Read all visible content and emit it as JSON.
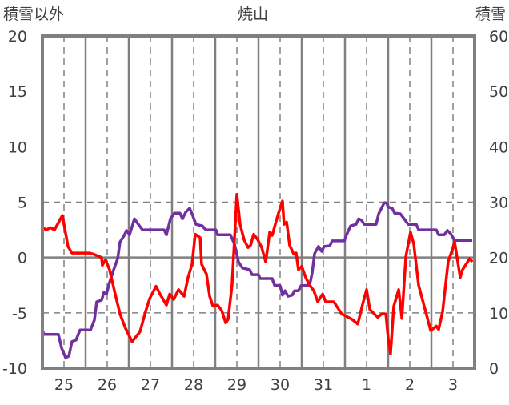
{
  "chart_data": {
    "type": "line",
    "title": "焼山",
    "ylabel_left": "積雪以外",
    "ylabel_right": "積雪",
    "ylim_left": [
      -10,
      20
    ],
    "yticks_left": [
      "20",
      "15",
      "10",
      "5",
      "0",
      "-5",
      "-10"
    ],
    "ylim_right": [
      0,
      60
    ],
    "yticks_right": [
      "60",
      "50",
      "40",
      "30",
      "20",
      "10",
      "0"
    ],
    "x_unit": "hours from start of day 25",
    "xlim": [
      0,
      240
    ],
    "x_tick_labels": [
      "25",
      "26",
      "27",
      "28",
      "29",
      "30",
      "31",
      "1",
      "2",
      "3"
    ],
    "grid": "vertical solid at midnight, dashed at noon; horizontal solid at 0, dashed at ±5",
    "series": [
      {
        "name": "積雪以外",
        "axis": "left",
        "color": "#ff0000",
        "points": [
          [
            0,
            2.7
          ],
          [
            2.2,
            2.5
          ],
          [
            4.4,
            2.7
          ],
          [
            6.7,
            2.5
          ],
          [
            11.1,
            3.8
          ],
          [
            14.2,
            1.0
          ],
          [
            16.4,
            0.4
          ],
          [
            26.2,
            0.4
          ],
          [
            28.4,
            0.3
          ],
          [
            32.9,
            0
          ],
          [
            33.3,
            -0.7
          ],
          [
            35.1,
            -0.2
          ],
          [
            37.3,
            -1.1
          ],
          [
            40,
            -3.0
          ],
          [
            43.1,
            -5.1
          ],
          [
            46.2,
            -6.4
          ],
          [
            49.8,
            -7.6
          ],
          [
            54.2,
            -6.7
          ],
          [
            57.3,
            -4.9
          ],
          [
            59.6,
            -3.7
          ],
          [
            63.1,
            -2.6
          ],
          [
            65.3,
            -3.3
          ],
          [
            68.9,
            -4.3
          ],
          [
            70.7,
            -3.3
          ],
          [
            72.9,
            -3.8
          ],
          [
            75.6,
            -2.9
          ],
          [
            78.7,
            -3.5
          ],
          [
            80.9,
            -1.8
          ],
          [
            83.1,
            -0.6
          ],
          [
            84.9,
            2.1
          ],
          [
            87.6,
            1.8
          ],
          [
            88.4,
            -0.6
          ],
          [
            91.1,
            -1.5
          ],
          [
            92.9,
            -3.5
          ],
          [
            94.7,
            -4.4
          ],
          [
            97.3,
            -4.3
          ],
          [
            99.6,
            -4.8
          ],
          [
            101.8,
            -5.9
          ],
          [
            103.1,
            -5.6
          ],
          [
            105.3,
            -2.5
          ],
          [
            106.7,
            1.8
          ],
          [
            108,
            5.7
          ],
          [
            109.8,
            3.0
          ],
          [
            112,
            1.6
          ],
          [
            114.2,
            0.9
          ],
          [
            115.6,
            1.1
          ],
          [
            117.3,
            2.1
          ],
          [
            119.6,
            1.6
          ],
          [
            121.8,
            0.9
          ],
          [
            124,
            -0.4
          ],
          [
            126.2,
            2.3
          ],
          [
            127.6,
            2.0
          ],
          [
            129.8,
            3.3
          ],
          [
            131.1,
            4.0
          ],
          [
            133.3,
            5.1
          ],
          [
            134.2,
            3.0
          ],
          [
            135.6,
            3.2
          ],
          [
            137.3,
            1.1
          ],
          [
            139.6,
            0.3
          ],
          [
            140.9,
            0.4
          ],
          [
            142.2,
            -1.1
          ],
          [
            144,
            -0.8
          ],
          [
            146.2,
            -1.8
          ],
          [
            148.4,
            -2.5
          ],
          [
            150.7,
            -3.0
          ],
          [
            152.9,
            -4.0
          ],
          [
            155.6,
            -3.3
          ],
          [
            157.3,
            -4.0
          ],
          [
            161.8,
            -4.0
          ],
          [
            166.2,
            -5.1
          ],
          [
            172,
            -5.6
          ],
          [
            175.1,
            -6.0
          ],
          [
            177.8,
            -4.2
          ],
          [
            180,
            -2.9
          ],
          [
            181.8,
            -4.7
          ],
          [
            186.2,
            -5.4
          ],
          [
            188.4,
            -5.1
          ],
          [
            190.7,
            -5.1
          ],
          [
            192,
            -7.3
          ],
          [
            193.3,
            -8.7
          ],
          [
            195.1,
            -4.4
          ],
          [
            197.8,
            -2.9
          ],
          [
            199.6,
            -5.5
          ],
          [
            201.8,
            0.1
          ],
          [
            204.4,
            2.3
          ],
          [
            206.2,
            1.2
          ],
          [
            208.9,
            -2.5
          ],
          [
            212,
            -4.4
          ],
          [
            215.6,
            -6.6
          ],
          [
            218.7,
            -6.2
          ],
          [
            220,
            -6.5
          ],
          [
            222.2,
            -4.9
          ],
          [
            225.3,
            -0.4
          ],
          [
            227.6,
            0.7
          ],
          [
            228.9,
            1.4
          ],
          [
            232,
            -1.8
          ],
          [
            233.3,
            -1.1
          ],
          [
            237.3,
            -0.1
          ],
          [
            238.7,
            -0.4
          ]
        ]
      },
      {
        "name": "積雪",
        "axis": "right",
        "color": "#7030a0",
        "points": [
          [
            0,
            6.9
          ],
          [
            0.9,
            6.1
          ],
          [
            8.9,
            6.1
          ],
          [
            10.7,
            3.6
          ],
          [
            12.9,
            1.9
          ],
          [
            14.7,
            2.2
          ],
          [
            16.4,
            4.8
          ],
          [
            18.7,
            5.1
          ],
          [
            20.9,
            6.9
          ],
          [
            26.7,
            6.9
          ],
          [
            28.9,
            8.7
          ],
          [
            30.2,
            12
          ],
          [
            32.9,
            12.3
          ],
          [
            34.2,
            13.7
          ],
          [
            35.6,
            13.4
          ],
          [
            37.3,
            15.5
          ],
          [
            39.6,
            17.8
          ],
          [
            41.8,
            19.8
          ],
          [
            43.1,
            22.8
          ],
          [
            45.3,
            23.9
          ],
          [
            46.7,
            24.9
          ],
          [
            48.4,
            24.1
          ],
          [
            49.8,
            25.6
          ],
          [
            51.1,
            27
          ],
          [
            53.3,
            26
          ],
          [
            55.6,
            25
          ],
          [
            67.6,
            25
          ],
          [
            68.9,
            24.1
          ],
          [
            71.1,
            27
          ],
          [
            73.3,
            28
          ],
          [
            76.4,
            28
          ],
          [
            77.8,
            27
          ],
          [
            79.6,
            28.2
          ],
          [
            81.8,
            28.9
          ],
          [
            83.1,
            27.9
          ],
          [
            85.3,
            26
          ],
          [
            88.9,
            25.7
          ],
          [
            90.7,
            25
          ],
          [
            96.4,
            25
          ],
          [
            97.3,
            24.1
          ],
          [
            104.4,
            24.1
          ],
          [
            106.7,
            22.4
          ],
          [
            108.9,
            19.2
          ],
          [
            111.1,
            18.1
          ],
          [
            115.1,
            17.8
          ],
          [
            116.4,
            16.9
          ],
          [
            120,
            16.9
          ],
          [
            120.9,
            16.2
          ],
          [
            127.6,
            16.2
          ],
          [
            128.9,
            15
          ],
          [
            132,
            14.9
          ],
          [
            133.3,
            13.2
          ],
          [
            134.7,
            14
          ],
          [
            136.4,
            13
          ],
          [
            138.7,
            13.2
          ],
          [
            140,
            14
          ],
          [
            142.2,
            14
          ],
          [
            143.6,
            14.9
          ],
          [
            148.4,
            15
          ],
          [
            149.8,
            17.3
          ],
          [
            151.1,
            20.7
          ],
          [
            153.3,
            22
          ],
          [
            155.1,
            21.1
          ],
          [
            156.4,
            22
          ],
          [
            159.6,
            22.1
          ],
          [
            160.9,
            23
          ],
          [
            167.6,
            23
          ],
          [
            168.9,
            24.1
          ],
          [
            171.1,
            25.7
          ],
          [
            174.2,
            26
          ],
          [
            175.6,
            27
          ],
          [
            177.3,
            26.7
          ],
          [
            178.7,
            26
          ],
          [
            185.3,
            26
          ],
          [
            186.7,
            27.9
          ],
          [
            189.8,
            29.9
          ],
          [
            191.1,
            29.9
          ],
          [
            192,
            29.1
          ],
          [
            194.2,
            28.9
          ],
          [
            195.6,
            28
          ],
          [
            198.7,
            27.9
          ],
          [
            200.9,
            27
          ],
          [
            203.1,
            26
          ],
          [
            207.6,
            26
          ],
          [
            208.9,
            25
          ],
          [
            218.7,
            25
          ],
          [
            220,
            24.1
          ],
          [
            223.1,
            24.1
          ],
          [
            224.9,
            24.9
          ],
          [
            226.7,
            24.3
          ],
          [
            228.9,
            23.1
          ],
          [
            238.7,
            23.1
          ]
        ]
      }
    ],
    "frame_color": "#808080"
  }
}
